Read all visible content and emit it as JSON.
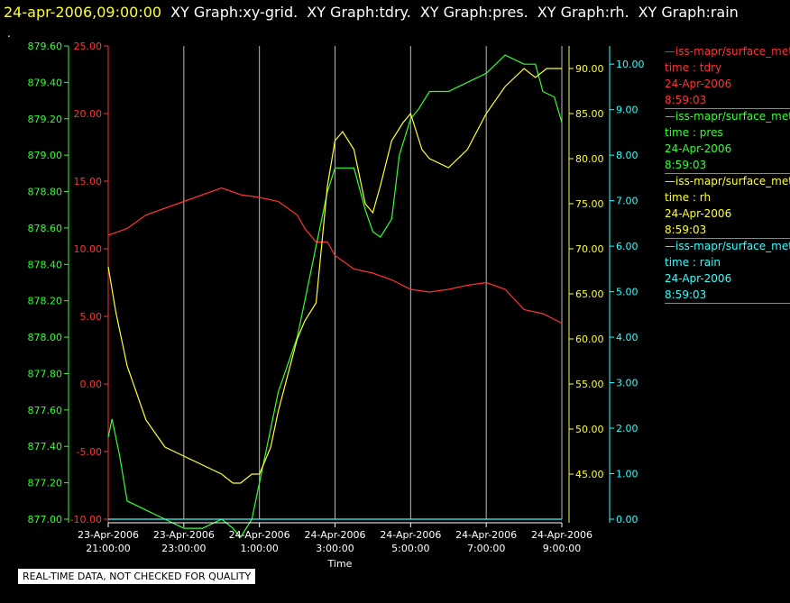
{
  "header": {
    "timestamp": "24-apr-2006,09:00:00",
    "graphs": [
      "XY Graph:xy-grid.",
      "XY Graph:tdry.",
      "XY Graph:pres.",
      "XY Graph:rh.",
      "XY Graph:rain"
    ]
  },
  "marker": ".",
  "footer": "REAL-TIME DATA, NOT CHECKED FOR QUALITY",
  "legend": [
    {
      "name": "iss-mapr/surface_met",
      "line1": "time : tdry",
      "date": "24-Apr-2006",
      "time": "8:59:03",
      "color": "#ff3333"
    },
    {
      "name": "iss-mapr/surface_met",
      "line1": "time : pres",
      "date": "24-Apr-2006",
      "time": "8:59:03",
      "color": "#33ff33"
    },
    {
      "name": "iss-mapr/surface_met",
      "line1": "time : rh",
      "date": "24-Apr-2006",
      "time": "8:59:03",
      "color": "#ffff33"
    },
    {
      "name": "iss-mapr/surface_met",
      "line1": "time : rain",
      "date": "24-Apr-2006",
      "time": "8:59:03",
      "color": "#33ffff"
    }
  ],
  "chart_data": {
    "type": "line",
    "xlabel": "Time",
    "x_ticks": [
      {
        "date": "23-Apr-2006",
        "time": "21:00:00",
        "h": 0
      },
      {
        "date": "23-Apr-2006",
        "time": "23:00:00",
        "h": 2
      },
      {
        "date": "24-Apr-2006",
        "time": "1:00:00",
        "h": 4
      },
      {
        "date": "24-Apr-2006",
        "time": "3:00:00",
        "h": 6
      },
      {
        "date": "24-Apr-2006",
        "time": "5:00:00",
        "h": 8
      },
      {
        "date": "24-Apr-2006",
        "time": "7:00:00",
        "h": 10
      },
      {
        "date": "24-Apr-2006",
        "time": "9:00:00",
        "h": 12
      }
    ],
    "grid": "vertical",
    "axes": [
      {
        "name": "pres",
        "color": "#33ff33",
        "side": "left-outer",
        "min": 877.0,
        "max": 879.6,
        "ticks": [
          "877.00",
          "877.20",
          "877.40",
          "877.60",
          "877.80",
          "878.00",
          "878.20",
          "878.40",
          "878.60",
          "878.80",
          "879.00",
          "879.20",
          "879.40",
          "879.60"
        ]
      },
      {
        "name": "tdry",
        "color": "#ff3333",
        "side": "left-inner",
        "min": -10,
        "max": 25,
        "ticks": [
          "-10.00",
          "-5.00",
          "0.00",
          "5.00",
          "10.00",
          "15.00",
          "20.00",
          "25.00"
        ]
      },
      {
        "name": "rh",
        "color": "#ffff33",
        "side": "right-inner",
        "min": 40,
        "max": 92.5,
        "ticks": [
          "45.00",
          "50.00",
          "55.00",
          "60.00",
          "65.00",
          "70.00",
          "75.00",
          "80.00",
          "85.00",
          "90.00"
        ]
      },
      {
        "name": "rain",
        "color": "#33ffff",
        "side": "right-outer",
        "min": 0,
        "max": 10.4,
        "ticks": [
          "0.00",
          "1.00",
          "2.00",
          "3.00",
          "4.00",
          "5.00",
          "6.00",
          "7.00",
          "8.00",
          "9.00",
          "10.00"
        ]
      }
    ],
    "series": [
      {
        "name": "tdry",
        "axis": "tdry",
        "color": "#ff3333",
        "x": [
          0,
          0.5,
          1,
          1.5,
          2,
          2.5,
          3,
          3.5,
          4,
          4.5,
          5,
          5.2,
          5.5,
          5.8,
          6,
          6.5,
          7,
          7.5,
          8,
          8.5,
          9,
          9.5,
          10,
          10.5,
          11,
          11.5,
          12
        ],
        "y": [
          11,
          11.5,
          12.5,
          13,
          13.5,
          14,
          14.5,
          14,
          13.8,
          13.5,
          12.5,
          11.5,
          10.5,
          10.5,
          9.5,
          8.5,
          8.2,
          7.7,
          7,
          6.8,
          7,
          7.3,
          7.5,
          7,
          5.5,
          5.2,
          4.5
        ]
      },
      {
        "name": "pres",
        "axis": "pres",
        "color": "#33ff33",
        "x": [
          0,
          0.1,
          0.3,
          0.5,
          1,
          1.5,
          2,
          2.5,
          3,
          3.3,
          3.5,
          3.8,
          4,
          4.2,
          4.5,
          5,
          5.2,
          5.5,
          5.8,
          6,
          6.2,
          6.5,
          6.8,
          7,
          7.2,
          7.5,
          7.7,
          8,
          8.2,
          8.5,
          9,
          9.5,
          10,
          10.5,
          11,
          11.3,
          11.5,
          11.8,
          12
        ],
        "y": [
          877.45,
          877.55,
          877.35,
          877.1,
          877.05,
          877.0,
          876.95,
          876.95,
          877.0,
          876.95,
          876.9,
          877.0,
          877.2,
          877.4,
          877.7,
          878.0,
          878.2,
          878.5,
          878.8,
          878.93,
          878.93,
          878.93,
          878.7,
          878.58,
          878.55,
          878.65,
          879.0,
          879.2,
          879.25,
          879.35,
          879.35,
          879.4,
          879.45,
          879.55,
          879.5,
          879.5,
          879.35,
          879.32,
          879.18
        ]
      },
      {
        "name": "rh",
        "axis": "rh",
        "color": "#ffff33",
        "x": [
          0,
          0.2,
          0.5,
          1,
          1.5,
          2,
          2.5,
          3,
          3.3,
          3.5,
          3.8,
          4,
          4.3,
          4.5,
          5,
          5.2,
          5.5,
          5.8,
          6,
          6.2,
          6.5,
          6.8,
          7,
          7.2,
          7.5,
          7.8,
          8,
          8.3,
          8.5,
          9,
          9.5,
          10,
          10.5,
          11,
          11.3,
          11.6,
          12
        ],
        "y": [
          68,
          63,
          57,
          51,
          48,
          47,
          46,
          45,
          44,
          44,
          45,
          45,
          48,
          52,
          60,
          62,
          64,
          77,
          82,
          83,
          81,
          75,
          74,
          77,
          82,
          84,
          85,
          81,
          80,
          79,
          81,
          85,
          88,
          90,
          89,
          90,
          90
        ]
      },
      {
        "name": "rain",
        "axis": "rain",
        "color": "#33ffff",
        "x": [
          0,
          12
        ],
        "y": [
          0,
          0
        ]
      }
    ]
  }
}
